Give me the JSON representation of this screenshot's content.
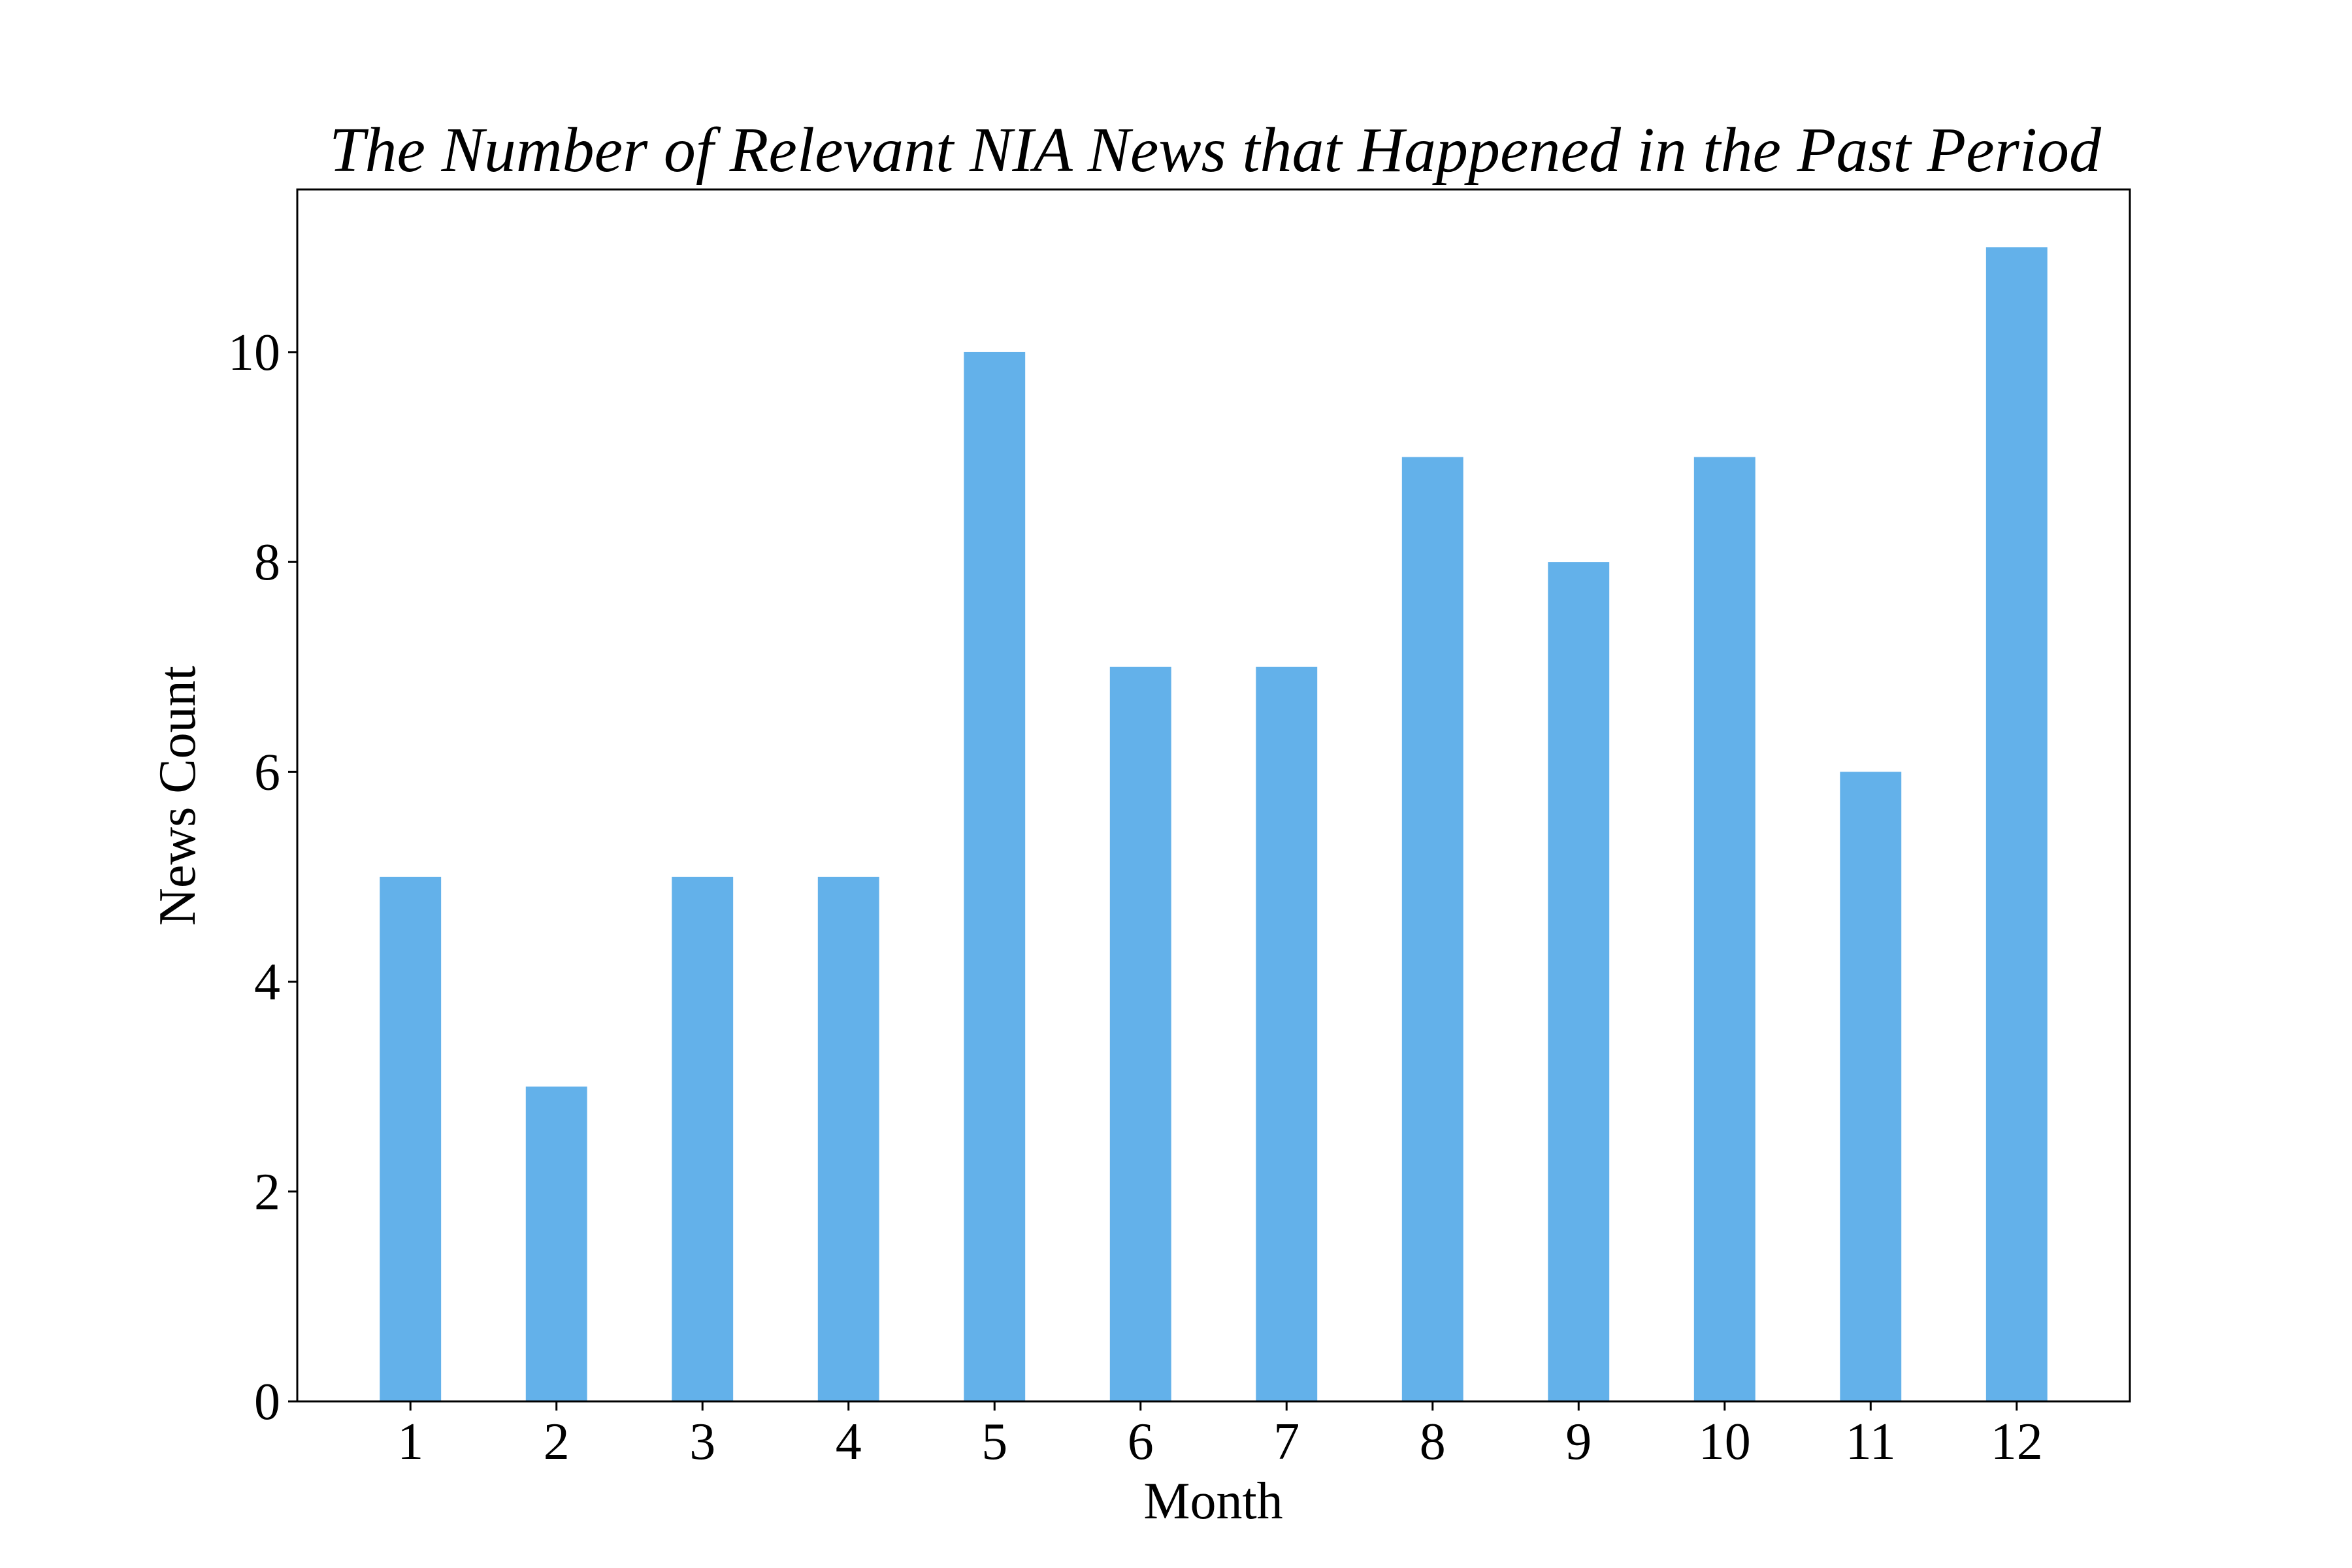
{
  "chart_data": {
    "type": "bar",
    "title": "The Number of Relevant NIA News that Happened in the Past Period",
    "xlabel": "Month",
    "ylabel": "News Count",
    "categories": [
      "1",
      "2",
      "3",
      "4",
      "5",
      "6",
      "7",
      "8",
      "9",
      "10",
      "11",
      "12"
    ],
    "values": [
      5,
      3,
      5,
      5,
      10,
      7,
      7,
      9,
      8,
      9,
      6,
      11
    ],
    "ylim": [
      0,
      11.55
    ],
    "yticks": [
      0,
      2,
      4,
      6,
      8,
      10
    ],
    "ytick_labels": [
      "0",
      "2",
      "4",
      "6",
      "8",
      "10"
    ],
    "grid": false,
    "bar_color": "#63b1ea"
  }
}
